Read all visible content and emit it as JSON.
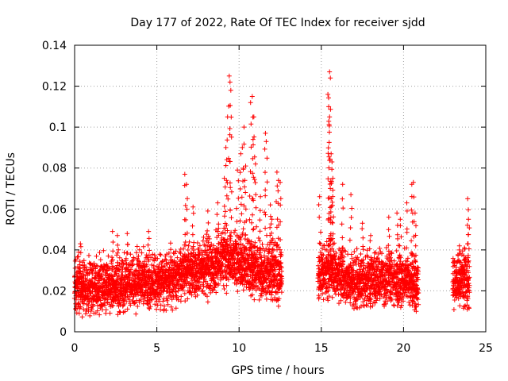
{
  "chart_data": {
    "type": "scatter",
    "title": "Day 177 of 2022, Rate Of TEC Index for receiver sjdd",
    "xlabel": "GPS time / hours",
    "ylabel": "ROTI / TECUs",
    "xlim": [
      0,
      25
    ],
    "ylim": [
      0,
      0.14
    ],
    "xticks": [
      0,
      5,
      10,
      15,
      20,
      25
    ],
    "yticks": [
      0,
      0.02,
      0.04,
      0.06,
      0.08,
      0.1,
      0.12,
      0.14
    ],
    "xtick_labels": [
      "0",
      "5",
      "10",
      "15",
      "20",
      "25"
    ],
    "ytick_labels": [
      "0",
      "0.02",
      "0.04",
      "0.06",
      "0.08",
      "0.1",
      "0.12",
      "0.14"
    ],
    "grid": true,
    "marker": "+",
    "color": "#ff0000",
    "series": [
      {
        "segments": [
          {
            "x_start": 0.0,
            "x_end": 12.6,
            "step": 0.02
          },
          {
            "x_start": 14.8,
            "x_end": 20.9,
            "step": 0.02
          },
          {
            "x_start": 23.0,
            "x_end": 24.0,
            "step": 0.02
          }
        ],
        "envelope": [
          [
            0.0,
            0.022
          ],
          [
            1.0,
            0.021
          ],
          [
            2.0,
            0.022
          ],
          [
            3.0,
            0.023
          ],
          [
            4.0,
            0.025
          ],
          [
            5.0,
            0.024
          ],
          [
            6.0,
            0.026
          ],
          [
            7.0,
            0.029
          ],
          [
            8.0,
            0.031
          ],
          [
            9.0,
            0.034
          ],
          [
            10.0,
            0.033
          ],
          [
            11.0,
            0.03
          ],
          [
            12.0,
            0.029
          ],
          [
            12.6,
            0.027
          ],
          [
            14.8,
            0.028
          ],
          [
            15.5,
            0.03
          ],
          [
            16.0,
            0.027
          ],
          [
            17.0,
            0.024
          ],
          [
            18.0,
            0.024
          ],
          [
            19.0,
            0.025
          ],
          [
            20.0,
            0.025
          ],
          [
            20.9,
            0.024
          ],
          [
            23.0,
            0.024
          ],
          [
            23.5,
            0.025
          ],
          [
            24.0,
            0.024
          ]
        ],
        "peaks": [
          [
            0.35,
            0.043
          ],
          [
            2.3,
            0.049
          ],
          [
            2.6,
            0.047
          ],
          [
            3.2,
            0.048
          ],
          [
            4.5,
            0.049
          ],
          [
            6.7,
            0.077
          ],
          [
            6.8,
            0.072
          ],
          [
            7.2,
            0.061
          ],
          [
            8.1,
            0.059
          ],
          [
            8.7,
            0.063
          ],
          [
            9.1,
            0.075
          ],
          [
            9.4,
            0.125
          ],
          [
            9.45,
            0.122
          ],
          [
            9.5,
            0.118
          ],
          [
            9.3,
            0.105
          ],
          [
            9.2,
            0.09
          ],
          [
            9.9,
            0.079
          ],
          [
            10.1,
            0.087
          ],
          [
            10.2,
            0.09
          ],
          [
            10.3,
            0.1
          ],
          [
            10.4,
            0.081
          ],
          [
            10.7,
            0.112
          ],
          [
            10.8,
            0.115
          ],
          [
            10.9,
            0.105
          ],
          [
            10.85,
            0.094
          ],
          [
            11.0,
            0.082
          ],
          [
            11.3,
            0.066
          ],
          [
            11.6,
            0.097
          ],
          [
            11.65,
            0.093
          ],
          [
            11.9,
            0.062
          ],
          [
            12.0,
            0.055
          ],
          [
            12.3,
            0.078
          ],
          [
            12.4,
            0.074
          ],
          [
            12.5,
            0.073
          ],
          [
            14.9,
            0.066
          ],
          [
            15.5,
            0.127
          ],
          [
            15.55,
            0.124
          ],
          [
            15.4,
            0.116
          ],
          [
            15.45,
            0.11
          ],
          [
            15.5,
            0.105
          ],
          [
            15.6,
            0.087
          ],
          [
            15.65,
            0.083
          ],
          [
            15.7,
            0.075
          ],
          [
            15.6,
            0.065
          ],
          [
            16.3,
            0.072
          ],
          [
            16.8,
            0.067
          ],
          [
            17.5,
            0.053
          ],
          [
            18.0,
            0.047
          ],
          [
            19.1,
            0.056
          ],
          [
            19.6,
            0.058
          ],
          [
            19.8,
            0.055
          ],
          [
            20.2,
            0.063
          ],
          [
            20.5,
            0.072
          ],
          [
            20.6,
            0.073
          ],
          [
            20.7,
            0.058
          ],
          [
            23.4,
            0.042
          ],
          [
            23.7,
            0.041
          ],
          [
            23.9,
            0.065
          ],
          [
            23.95,
            0.055
          ]
        ]
      }
    ]
  }
}
